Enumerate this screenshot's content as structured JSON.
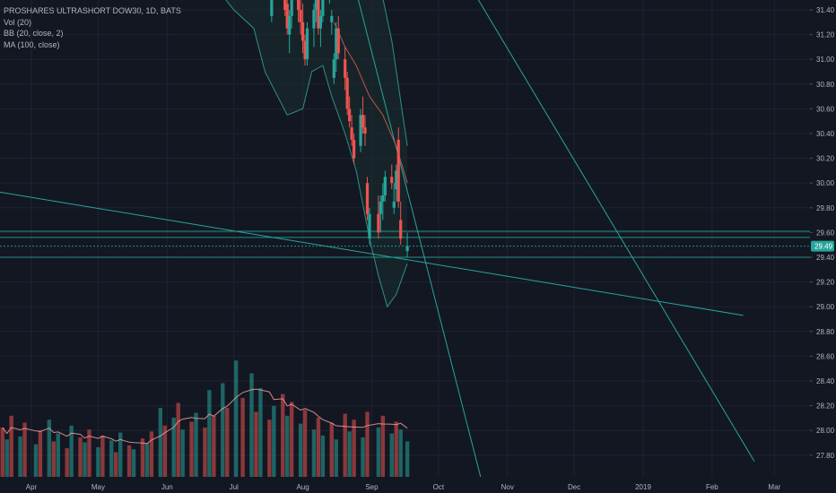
{
  "legend": {
    "title": "PROSHARES ULTRASHORT DOW30, 1D, BATS",
    "vol": "Vol (20)",
    "bb": "BB (20, close, 2)",
    "ma": "MA (100, close)"
  },
  "colors": {
    "background": "#131722",
    "grid": "#1f2330",
    "up": "#26a69a",
    "down": "#ef5350",
    "bb_band": "#2f8f83",
    "bb_fill": "#1a2f30",
    "ma": "#c0504d",
    "trendline": "#26a69a",
    "volume_ma": "#f0a0a0"
  },
  "chart_data": {
    "type": "candlestick",
    "symbol": "PROSHARES ULTRASHORT DOW30",
    "interval": "1D",
    "exchange": "BATS",
    "ylim": [
      27.6,
      31.55
    ],
    "y_ticks": [
      "31.40",
      "31.20",
      "31.00",
      "30.80",
      "30.60",
      "30.40",
      "30.20",
      "30.00",
      "29.80",
      "29.60",
      "29.40",
      "29.20",
      "29.00",
      "28.80",
      "28.60",
      "28.40",
      "28.20",
      "28.00",
      "27.80"
    ],
    "x_ticks": [
      "Apr",
      "May",
      "Jun",
      "Jul",
      "Aug",
      "Sep",
      "Oct",
      "Nov",
      "Dec",
      "2019",
      "Feb",
      "Mar"
    ],
    "last_price": "29.49",
    "horizontal_levels": [
      29.61,
      29.56,
      29.49,
      29.4
    ],
    "candles": [
      {
        "date": "2018-07-18",
        "o": 31.35,
        "h": 31.56,
        "l": 31.3,
        "c": 31.5
      },
      {
        "date": "2018-07-24",
        "o": 31.55,
        "h": 31.6,
        "l": 31.35,
        "c": 31.4
      },
      {
        "date": "2018-07-25",
        "o": 31.45,
        "h": 31.6,
        "l": 31.2,
        "c": 31.25
      },
      {
        "date": "2018-07-26",
        "o": 31.2,
        "h": 31.4,
        "l": 31.05,
        "c": 31.35
      },
      {
        "date": "2018-07-27",
        "o": 31.35,
        "h": 31.6,
        "l": 31.25,
        "c": 31.5
      },
      {
        "date": "2018-07-30",
        "o": 31.55,
        "h": 31.6,
        "l": 31.3,
        "c": 31.4
      },
      {
        "date": "2018-07-31",
        "o": 31.4,
        "h": 31.55,
        "l": 31.2,
        "c": 31.3
      },
      {
        "date": "2018-08-01",
        "o": 31.3,
        "h": 31.45,
        "l": 31.05,
        "c": 31.15
      },
      {
        "date": "2018-08-02",
        "o": 31.15,
        "h": 31.2,
        "l": 30.95,
        "c": 31.0
      },
      {
        "date": "2018-08-03",
        "o": 31.0,
        "h": 31.3,
        "l": 30.95,
        "c": 31.25
      },
      {
        "date": "2018-08-06",
        "o": 31.25,
        "h": 31.45,
        "l": 31.1,
        "c": 31.4
      },
      {
        "date": "2018-08-07",
        "o": 31.4,
        "h": 31.55,
        "l": 31.3,
        "c": 31.5
      },
      {
        "date": "2018-08-08",
        "o": 31.5,
        "h": 31.6,
        "l": 31.2,
        "c": 31.25
      },
      {
        "date": "2018-08-09",
        "o": 31.25,
        "h": 31.4,
        "l": 31.1,
        "c": 31.35
      },
      {
        "date": "2018-08-10",
        "o": 31.35,
        "h": 31.6,
        "l": 31.3,
        "c": 31.55
      },
      {
        "date": "2018-08-13",
        "o": 31.5,
        "h": 31.6,
        "l": 31.45,
        "c": 31.55
      },
      {
        "date": "2018-08-14",
        "o": 31.3,
        "h": 31.4,
        "l": 31.2,
        "c": 31.35
      },
      {
        "date": "2018-08-15",
        "o": 30.85,
        "h": 31.05,
        "l": 30.8,
        "c": 31.0
      },
      {
        "date": "2018-08-16",
        "o": 31.0,
        "h": 31.3,
        "l": 30.9,
        "c": 31.25
      },
      {
        "date": "2018-08-17",
        "o": 31.25,
        "h": 31.35,
        "l": 31.0,
        "c": 31.05
      },
      {
        "date": "2018-08-20",
        "o": 31.0,
        "h": 31.1,
        "l": 30.75,
        "c": 30.85
      },
      {
        "date": "2018-08-21",
        "o": 30.85,
        "h": 30.9,
        "l": 30.55,
        "c": 30.6
      },
      {
        "date": "2018-08-22",
        "o": 30.6,
        "h": 30.7,
        "l": 30.45,
        "c": 30.5
      },
      {
        "date": "2018-08-23",
        "o": 30.45,
        "h": 30.55,
        "l": 30.3,
        "c": 30.35
      },
      {
        "date": "2018-08-24",
        "o": 30.35,
        "h": 30.4,
        "l": 30.15,
        "c": 30.2
      },
      {
        "date": "2018-08-27",
        "o": 30.3,
        "h": 30.6,
        "l": 30.25,
        "c": 30.55
      },
      {
        "date": "2018-08-28",
        "o": 30.55,
        "h": 30.7,
        "l": 30.4,
        "c": 30.45
      },
      {
        "date": "2018-08-29",
        "o": 30.45,
        "h": 30.55,
        "l": 30.3,
        "c": 30.4
      },
      {
        "date": "2018-08-30",
        "o": 30.0,
        "h": 30.05,
        "l": 29.7,
        "c": 29.75
      },
      {
        "date": "2018-08-31",
        "o": 29.55,
        "h": 29.8,
        "l": 29.5,
        "c": 29.75
      },
      {
        "date": "2018-09-04",
        "o": 29.75,
        "h": 29.9,
        "l": 29.55,
        "c": 29.6
      },
      {
        "date": "2018-09-05",
        "o": 29.75,
        "h": 29.9,
        "l": 29.6,
        "c": 29.85
      },
      {
        "date": "2018-09-06",
        "o": 29.85,
        "h": 30.0,
        "l": 29.7,
        "c": 29.9
      },
      {
        "date": "2018-09-07",
        "o": 29.9,
        "h": 30.1,
        "l": 29.85,
        "c": 30.05
      },
      {
        "date": "2018-09-10",
        "o": 30.05,
        "h": 30.15,
        "l": 29.95,
        "c": 30.0
      },
      {
        "date": "2018-09-11",
        "o": 29.8,
        "h": 30.0,
        "l": 29.75,
        "c": 29.85
      },
      {
        "date": "2018-09-12",
        "o": 29.95,
        "h": 30.15,
        "l": 29.85,
        "c": 30.1
      },
      {
        "date": "2018-09-13",
        "o": 30.35,
        "h": 30.45,
        "l": 29.8,
        "c": 29.85
      },
      {
        "date": "2018-09-14",
        "o": 29.7,
        "h": 29.85,
        "l": 29.5,
        "c": 29.55
      },
      {
        "date": "2018-09-17",
        "o": 29.45,
        "h": 29.6,
        "l": 29.4,
        "c": 29.49
      }
    ],
    "volume": [
      {
        "date": "2018-03-19",
        "v": 50,
        "up": false
      },
      {
        "date": "2018-03-21",
        "v": 38,
        "up": true
      },
      {
        "date": "2018-03-23",
        "v": 62,
        "up": false
      },
      {
        "date": "2018-03-27",
        "v": 41,
        "up": true
      },
      {
        "date": "2018-03-29",
        "v": 55,
        "up": false
      },
      {
        "date": "2018-04-03",
        "v": 33,
        "up": true
      },
      {
        "date": "2018-04-05",
        "v": 47,
        "up": false
      },
      {
        "date": "2018-04-09",
        "v": 58,
        "up": true
      },
      {
        "date": "2018-04-11",
        "v": 36,
        "up": false
      },
      {
        "date": "2018-04-13",
        "v": 44,
        "up": true
      },
      {
        "date": "2018-04-17",
        "v": 29,
        "up": false
      },
      {
        "date": "2018-04-19",
        "v": 52,
        "up": true
      },
      {
        "date": "2018-04-23",
        "v": 40,
        "up": false
      },
      {
        "date": "2018-04-25",
        "v": 35,
        "up": true
      },
      {
        "date": "2018-04-27",
        "v": 48,
        "up": false
      },
      {
        "date": "2018-05-01",
        "v": 30,
        "up": true
      },
      {
        "date": "2018-05-03",
        "v": 42,
        "up": false
      },
      {
        "date": "2018-05-07",
        "v": 37,
        "up": true
      },
      {
        "date": "2018-05-09",
        "v": 25,
        "up": false
      },
      {
        "date": "2018-05-11",
        "v": 45,
        "up": true
      },
      {
        "date": "2018-05-15",
        "v": 32,
        "up": false
      },
      {
        "date": "2018-05-17",
        "v": 28,
        "up": true
      },
      {
        "date": "2018-05-21",
        "v": 39,
        "up": false
      },
      {
        "date": "2018-05-23",
        "v": 34,
        "up": true
      },
      {
        "date": "2018-05-25",
        "v": 46,
        "up": false
      },
      {
        "date": "2018-05-29",
        "v": 70,
        "up": true
      },
      {
        "date": "2018-05-31",
        "v": 52,
        "up": false
      },
      {
        "date": "2018-06-04",
        "v": 60,
        "up": true
      },
      {
        "date": "2018-06-06",
        "v": 75,
        "up": false
      },
      {
        "date": "2018-06-08",
        "v": 48,
        "up": true
      },
      {
        "date": "2018-06-12",
        "v": 56,
        "up": false
      },
      {
        "date": "2018-06-14",
        "v": 65,
        "up": true
      },
      {
        "date": "2018-06-18",
        "v": 50,
        "up": false
      },
      {
        "date": "2018-06-20",
        "v": 88,
        "up": true
      },
      {
        "date": "2018-06-22",
        "v": 62,
        "up": false
      },
      {
        "date": "2018-06-26",
        "v": 95,
        "up": true
      },
      {
        "date": "2018-06-28",
        "v": 70,
        "up": false
      },
      {
        "date": "2018-07-02",
        "v": 118,
        "up": true
      },
      {
        "date": "2018-07-05",
        "v": 80,
        "up": false
      },
      {
        "date": "2018-07-09",
        "v": 105,
        "up": true
      },
      {
        "date": "2018-07-11",
        "v": 66,
        "up": false
      },
      {
        "date": "2018-07-13",
        "v": 90,
        "up": true
      },
      {
        "date": "2018-07-17",
        "v": 58,
        "up": false
      },
      {
        "date": "2018-07-19",
        "v": 72,
        "up": true
      },
      {
        "date": "2018-07-23",
        "v": 84,
        "up": false
      },
      {
        "date": "2018-07-25",
        "v": 62,
        "up": true
      },
      {
        "date": "2018-07-27",
        "v": 76,
        "up": false
      },
      {
        "date": "2018-07-31",
        "v": 54,
        "up": true
      },
      {
        "date": "2018-08-02",
        "v": 68,
        "up": false
      },
      {
        "date": "2018-08-06",
        "v": 48,
        "up": true
      },
      {
        "date": "2018-08-08",
        "v": 60,
        "up": false
      },
      {
        "date": "2018-08-10",
        "v": 42,
        "up": true
      },
      {
        "date": "2018-08-14",
        "v": 55,
        "up": false
      },
      {
        "date": "2018-08-16",
        "v": 38,
        "up": true
      },
      {
        "date": "2018-08-20",
        "v": 64,
        "up": false
      },
      {
        "date": "2018-08-22",
        "v": 46,
        "up": true
      },
      {
        "date": "2018-08-24",
        "v": 58,
        "up": false
      },
      {
        "date": "2018-08-28",
        "v": 40,
        "up": true
      },
      {
        "date": "2018-08-30",
        "v": 66,
        "up": false
      },
      {
        "date": "2018-09-04",
        "v": 50,
        "up": true
      },
      {
        "date": "2018-09-06",
        "v": 62,
        "up": false
      },
      {
        "date": "2018-09-10",
        "v": 44,
        "up": true
      },
      {
        "date": "2018-09-12",
        "v": 56,
        "up": false
      },
      {
        "date": "2018-09-14",
        "v": 48,
        "up": true
      },
      {
        "date": "2018-09-17",
        "v": 36,
        "up": true
      }
    ],
    "bollinger": {
      "upper": [
        [
          "2018-06-20",
          31.7
        ],
        [
          "2018-07-20",
          31.7
        ],
        [
          "2018-08-10",
          31.6
        ],
        [
          "2018-08-25",
          31.65
        ],
        [
          "2018-09-03",
          31.75
        ],
        [
          "2018-09-10",
          31.15
        ],
        [
          "2018-09-17",
          30.3
        ]
      ],
      "lower": [
        [
          "2018-06-20",
          31.65
        ],
        [
          "2018-07-01",
          31.4
        ],
        [
          "2018-07-10",
          31.25
        ],
        [
          "2018-07-15",
          30.9
        ],
        [
          "2018-07-25",
          30.55
        ],
        [
          "2018-08-01",
          30.6
        ],
        [
          "2018-08-05",
          30.9
        ],
        [
          "2018-08-10",
          30.95
        ],
        [
          "2018-08-14",
          30.7
        ],
        [
          "2018-08-20",
          30.4
        ],
        [
          "2018-08-25",
          30.1
        ],
        [
          "2018-08-31",
          29.55
        ],
        [
          "2018-09-04",
          29.25
        ],
        [
          "2018-09-08",
          29.0
        ],
        [
          "2018-09-12",
          29.1
        ],
        [
          "2018-09-17",
          29.35
        ]
      ]
    },
    "moving_average": [
      [
        "2018-08-15",
        31.3
      ],
      [
        "2018-08-20",
        31.1
      ],
      [
        "2018-08-25",
        30.95
      ],
      [
        "2018-08-31",
        30.7
      ],
      [
        "2018-09-06",
        30.55
      ],
      [
        "2018-09-12",
        30.3
      ],
      [
        "2018-09-17",
        30.0
      ]
    ],
    "trendlines": [
      {
        "x1": "2018-03-10",
        "y1": 29.95,
        "x2": "2019-02-15",
        "y2": 28.93
      },
      {
        "x1": "2018-08-20",
        "y1": 31.9,
        "x2": "2018-10-20",
        "y2": 27.62
      },
      {
        "x1": "2018-10-05",
        "y1": 31.9,
        "x2": "2019-02-20",
        "y2": 27.75
      }
    ]
  }
}
